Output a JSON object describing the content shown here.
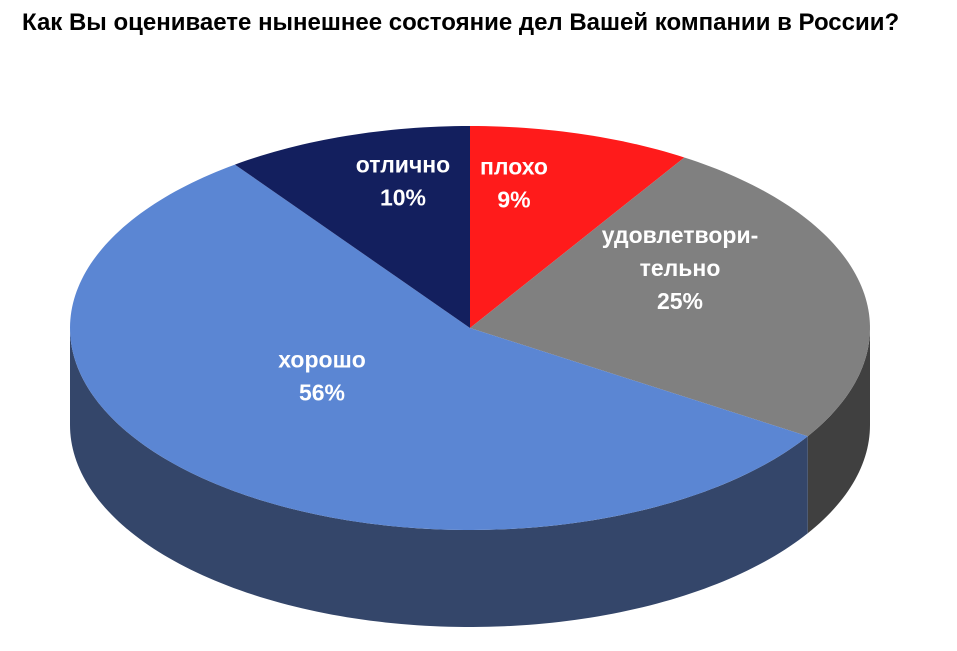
{
  "chart_data": {
    "type": "pie",
    "style": "3d",
    "title": "Как Вы оцениваете нынешнее состояние дел Вашей компании в России?",
    "slices": [
      {
        "label": "плохо",
        "value": 9,
        "value_label": "9%",
        "color": "#FF1B1B",
        "label_lines": [
          "плохо"
        ]
      },
      {
        "label": "удовлетворительно",
        "value": 25,
        "value_label": "25%",
        "color": "#808080",
        "label_lines": [
          "удовлетвори-",
          "тельно"
        ]
      },
      {
        "label": "хорошо",
        "value": 56,
        "value_label": "56%",
        "color": "#5B86D3",
        "label_lines": [
          "хорошо"
        ]
      },
      {
        "label": "отлично",
        "value": 10,
        "value_label": "10%",
        "color": "#131F5E",
        "label_lines": [
          "отлично"
        ]
      }
    ],
    "side_colors": {
      "#FF1B1B": "#B01010",
      "#808080": "#404040",
      "#5B86D3": "#34466A",
      "#131F5E": "#0C1440"
    },
    "legend": "none",
    "start": "12 o'clock",
    "direction": "clockwise"
  }
}
